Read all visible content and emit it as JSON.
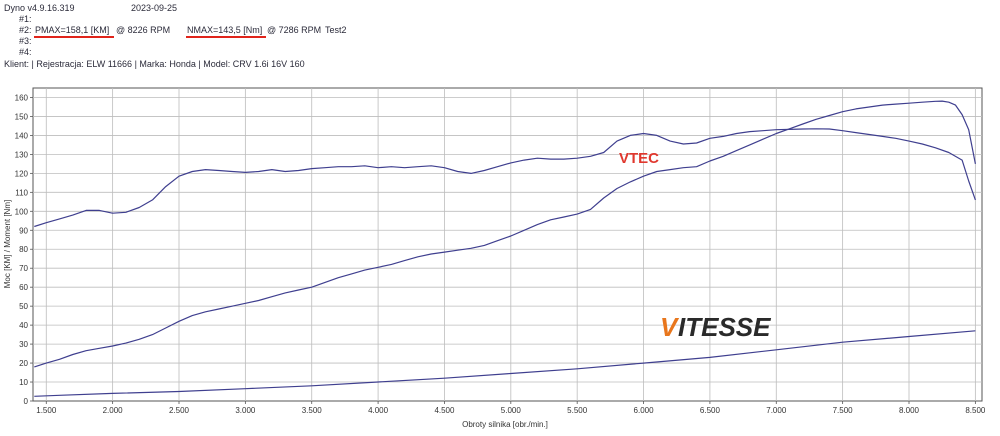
{
  "header": {
    "app_version": "Dyno v4.9.16.319",
    "date": "2023-09-25",
    "row1_label": "#1:",
    "row2_label": "#2:",
    "row2_pmax": "PMAX=158,1 [KM]",
    "row2_pmax_rpm": "@ 8226 RPM",
    "row2_nmax": "NMAX=143,5 [Nm]",
    "row2_nmax_rpm": "@ 7286 RPM",
    "row2_test": "Test2",
    "row3_label": "#3:",
    "row4_label": "#4:",
    "client_line": "Klient:  | Rejestracja: ELW 11666 | Marka: Honda | Model: CRV 1.6i 16V 160"
  },
  "logo": {
    "text": "VITESSE",
    "first_letter": "V",
    "rest": "ITESSE",
    "accent": "#e8761c",
    "dark": "#2a2a2a"
  },
  "chart_data": {
    "type": "line",
    "xlabel": "Obroty silnika [obr./min.]",
    "ylabel": "Moc [KM] / Moment [Nm]",
    "xlim": [
      1400,
      8550
    ],
    "ylim": [
      0,
      165
    ],
    "x_ticks": [
      1500,
      2000,
      2500,
      3000,
      3500,
      4000,
      4500,
      5000,
      5500,
      6000,
      6500,
      7000,
      7500,
      8000,
      8500
    ],
    "x_tick_labels": [
      "1.500",
      "2.000",
      "2.500",
      "3.000",
      "3.500",
      "4.000",
      "4.500",
      "5.000",
      "5.500",
      "6.000",
      "6.500",
      "7.000",
      "7.500",
      "8.000",
      "8.500"
    ],
    "y_ticks": [
      0,
      10,
      20,
      30,
      40,
      50,
      60,
      70,
      80,
      90,
      100,
      110,
      120,
      130,
      140,
      150,
      160
    ],
    "y_tick_labels": [
      "0",
      "10",
      "20",
      "30",
      "40",
      "50",
      "60",
      "70",
      "80",
      "90",
      "100",
      "110",
      "120",
      "130",
      "140",
      "150",
      "160"
    ],
    "grid": true,
    "line_color": "#3f3f8f",
    "annotation": {
      "text": "VTEC",
      "x": 5850,
      "y": 128
    },
    "series": [
      {
        "values": [
          [
            1410,
            92
          ],
          [
            1500,
            94
          ],
          [
            1600,
            96
          ],
          [
            1700,
            98
          ],
          [
            1800,
            100.5
          ],
          [
            1900,
            100.5
          ],
          [
            2000,
            99
          ],
          [
            2100,
            99.5
          ],
          [
            2200,
            102
          ],
          [
            2300,
            106
          ],
          [
            2400,
            113
          ],
          [
            2500,
            118.5
          ],
          [
            2600,
            121
          ],
          [
            2700,
            122
          ],
          [
            2800,
            121.5
          ],
          [
            2900,
            121
          ],
          [
            3000,
            120.5
          ],
          [
            3100,
            121
          ],
          [
            3200,
            122
          ],
          [
            3300,
            121
          ],
          [
            3400,
            121.5
          ],
          [
            3500,
            122.5
          ],
          [
            3600,
            123
          ],
          [
            3700,
            123.5
          ],
          [
            3800,
            123.5
          ],
          [
            3900,
            124
          ],
          [
            4000,
            123
          ],
          [
            4100,
            123.5
          ],
          [
            4200,
            123
          ],
          [
            4300,
            123.5
          ],
          [
            4400,
            124
          ],
          [
            4500,
            123
          ],
          [
            4600,
            121
          ],
          [
            4700,
            120
          ],
          [
            4800,
            121.5
          ],
          [
            4900,
            123.5
          ],
          [
            5000,
            125.5
          ],
          [
            5100,
            127
          ],
          [
            5200,
            128
          ],
          [
            5300,
            127.5
          ],
          [
            5400,
            127.5
          ],
          [
            5500,
            128
          ],
          [
            5600,
            129
          ],
          [
            5700,
            131
          ],
          [
            5800,
            137
          ],
          [
            5900,
            140
          ],
          [
            6000,
            141
          ],
          [
            6100,
            140
          ],
          [
            6200,
            137
          ],
          [
            6300,
            135.5
          ],
          [
            6400,
            136
          ],
          [
            6500,
            138.5
          ],
          [
            6600,
            139.5
          ],
          [
            6700,
            141
          ],
          [
            6800,
            142
          ],
          [
            6900,
            142.5
          ],
          [
            7000,
            143
          ],
          [
            7100,
            143.2
          ],
          [
            7200,
            143.4
          ],
          [
            7300,
            143.5
          ],
          [
            7400,
            143.4
          ],
          [
            7500,
            142.5
          ],
          [
            7600,
            141.5
          ],
          [
            7700,
            140.5
          ],
          [
            7800,
            139.5
          ],
          [
            7900,
            138.5
          ],
          [
            8000,
            137
          ],
          [
            8100,
            135.5
          ],
          [
            8200,
            133.5
          ],
          [
            8300,
            131
          ],
          [
            8400,
            127
          ],
          [
            8450,
            116
          ],
          [
            8500,
            106
          ]
        ]
      },
      {
        "values": [
          [
            1410,
            18
          ],
          [
            1500,
            20
          ],
          [
            1600,
            22
          ],
          [
            1700,
            24.5
          ],
          [
            1800,
            26.5
          ],
          [
            1900,
            27.8
          ],
          [
            2000,
            29
          ],
          [
            2100,
            30.5
          ],
          [
            2200,
            32.5
          ],
          [
            2300,
            35
          ],
          [
            2400,
            38.5
          ],
          [
            2500,
            42
          ],
          [
            2600,
            45
          ],
          [
            2700,
            47
          ],
          [
            2800,
            48.5
          ],
          [
            2900,
            50
          ],
          [
            3000,
            51.5
          ],
          [
            3100,
            53
          ],
          [
            3200,
            55
          ],
          [
            3300,
            57
          ],
          [
            3400,
            58.5
          ],
          [
            3500,
            60
          ],
          [
            3600,
            62.5
          ],
          [
            3700,
            65
          ],
          [
            3800,
            67
          ],
          [
            3900,
            69
          ],
          [
            4000,
            70.5
          ],
          [
            4100,
            72
          ],
          [
            4200,
            74
          ],
          [
            4300,
            76
          ],
          [
            4400,
            77.5
          ],
          [
            4500,
            78.5
          ],
          [
            4600,
            79.5
          ],
          [
            4700,
            80.5
          ],
          [
            4800,
            82
          ],
          [
            4900,
            84.5
          ],
          [
            5000,
            87
          ],
          [
            5100,
            90
          ],
          [
            5200,
            93
          ],
          [
            5300,
            95.5
          ],
          [
            5400,
            97
          ],
          [
            5500,
            98.5
          ],
          [
            5600,
            101
          ],
          [
            5700,
            107
          ],
          [
            5800,
            112
          ],
          [
            5900,
            115.5
          ],
          [
            6000,
            118.5
          ],
          [
            6100,
            121
          ],
          [
            6200,
            122
          ],
          [
            6300,
            123
          ],
          [
            6400,
            123.5
          ],
          [
            6500,
            126.5
          ],
          [
            6600,
            129
          ],
          [
            6700,
            132
          ],
          [
            6800,
            135
          ],
          [
            6900,
            138
          ],
          [
            7000,
            141
          ],
          [
            7100,
            143.5
          ],
          [
            7200,
            146
          ],
          [
            7300,
            148.5
          ],
          [
            7400,
            150.5
          ],
          [
            7500,
            152.5
          ],
          [
            7600,
            154
          ],
          [
            7700,
            155
          ],
          [
            7800,
            156
          ],
          [
            7900,
            156.5
          ],
          [
            8000,
            157
          ],
          [
            8100,
            157.5
          ],
          [
            8200,
            158
          ],
          [
            8250,
            158.1
          ],
          [
            8300,
            157.5
          ],
          [
            8350,
            156
          ],
          [
            8400,
            151
          ],
          [
            8450,
            143
          ],
          [
            8500,
            125
          ]
        ]
      },
      {
        "values": [
          [
            1410,
            2.5
          ],
          [
            1600,
            3
          ],
          [
            2000,
            4
          ],
          [
            2500,
            5
          ],
          [
            3000,
            6.5
          ],
          [
            3500,
            8
          ],
          [
            4000,
            10
          ],
          [
            4500,
            12
          ],
          [
            5000,
            14.5
          ],
          [
            5500,
            17
          ],
          [
            6000,
            20
          ],
          [
            6500,
            23
          ],
          [
            7000,
            27
          ],
          [
            7500,
            31
          ],
          [
            8000,
            34
          ],
          [
            8500,
            37
          ]
        ]
      }
    ]
  }
}
